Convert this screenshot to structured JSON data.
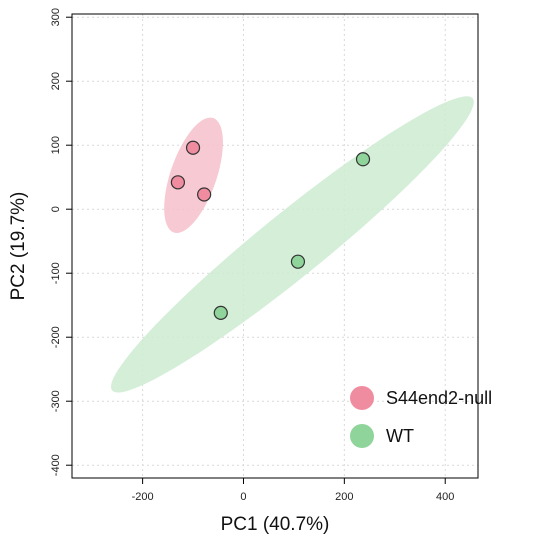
{
  "chart_data": {
    "type": "scatter",
    "title": "",
    "xlabel": "PC1 (40.7%)",
    "ylabel": "PC2 (19.7%)",
    "xlim": [
      -340,
      465
    ],
    "ylim": [
      -420,
      305
    ],
    "x_ticks": [
      -200,
      0,
      200,
      400
    ],
    "y_ticks": [
      -400,
      -300,
      -200,
      -100,
      0,
      100,
      200,
      300
    ],
    "grid": true,
    "legend_position": "bottom-right",
    "series": [
      {
        "name": "S44end2-null",
        "color": "#f08ca0",
        "ellipse_color": "#f6bfcb",
        "points": [
          {
            "x": -130,
            "y": 42
          },
          {
            "x": -100,
            "y": 96
          },
          {
            "x": -78,
            "y": 23
          }
        ],
        "ellipse": {
          "cx": -99,
          "cy": 53,
          "rx": 120,
          "ry": 36,
          "angle_deg": 71
        }
      },
      {
        "name": "WT",
        "color": "#8fd49a",
        "ellipse_color": "#cdebd1",
        "points": [
          {
            "x": -45,
            "y": -162
          },
          {
            "x": 108,
            "y": -82
          },
          {
            "x": 237,
            "y": 78
          }
        ],
        "ellipse": {
          "cx": 97,
          "cy": -55,
          "rx": 460,
          "ry": 50,
          "angle_deg": 39
        }
      }
    ]
  }
}
